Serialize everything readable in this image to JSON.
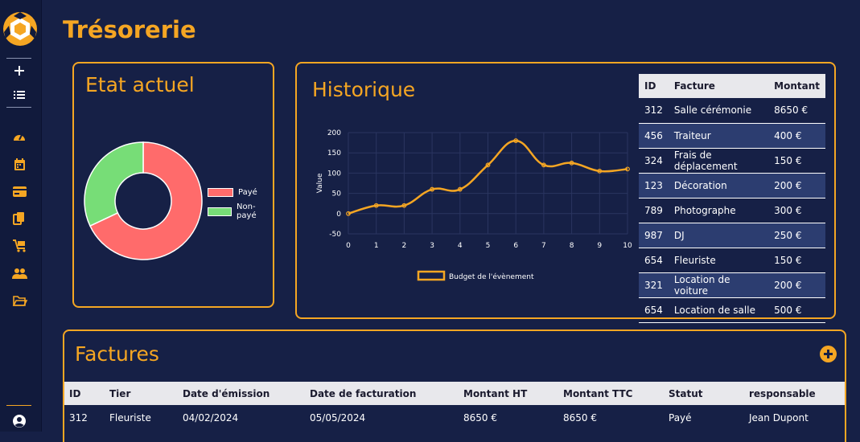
{
  "page": {
    "title": "Trésorerie"
  },
  "sidebar": {
    "top_items": [
      {
        "name": "add-icon"
      },
      {
        "name": "list-icon"
      }
    ],
    "items": [
      {
        "name": "dashboard-icon"
      },
      {
        "name": "calendar-icon"
      },
      {
        "name": "credit-card-icon"
      },
      {
        "name": "documents-icon"
      },
      {
        "name": "cart-icon"
      },
      {
        "name": "users-icon"
      },
      {
        "name": "folder-icon"
      }
    ],
    "bottom_icon": "user-circle-icon"
  },
  "etat": {
    "title": "Etat actuel",
    "legend": [
      {
        "label": "Payé",
        "color": "#ff6b6b"
      },
      {
        "label": "Non-payé",
        "color": "#77dd77"
      }
    ]
  },
  "historique": {
    "title": "Historique",
    "table": {
      "headers": [
        "ID",
        "Facture",
        "Montant"
      ],
      "rows": [
        [
          "312",
          "Salle cérémonie",
          "8650 €"
        ],
        [
          "456",
          "Traiteur",
          "400 €"
        ],
        [
          "324",
          "Frais de déplacement",
          "150 €"
        ],
        [
          "123",
          "Décoration",
          "200 €"
        ],
        [
          "789",
          "Photographe",
          "300 €"
        ],
        [
          "987",
          "DJ",
          "250 €"
        ],
        [
          "654",
          "Fleuriste",
          "150 €"
        ],
        [
          "321",
          "Location de voiture",
          "200 €"
        ],
        [
          "654",
          "Location de salle",
          "500 €"
        ]
      ]
    }
  },
  "factures": {
    "title": "Factures",
    "headers": [
      "ID",
      "Tier",
      "Date d'émission",
      "Date de facturation",
      "Montant HT",
      "Montant TTC",
      "Statut",
      "responsable"
    ],
    "rows": [
      [
        "312",
        "Fleuriste",
        "04/02/2024",
        "05/05/2024",
        "8650 €",
        "8650 €",
        "Payé",
        "Jean Dupont"
      ]
    ]
  },
  "chart_data": [
    {
      "type": "pie",
      "title": "",
      "donut": true,
      "categories": [
        "Payé",
        "Non-payé"
      ],
      "values": [
        68,
        32
      ],
      "colors": [
        "#ff6b6b",
        "#77dd77"
      ],
      "legend_position": "right"
    },
    {
      "type": "line",
      "title": "",
      "xlabel": "",
      "ylabel": "Value",
      "x": [
        0,
        1,
        2,
        3,
        4,
        5,
        6,
        7,
        8,
        9,
        10
      ],
      "series": [
        {
          "name": "Budget de l'évènement",
          "values": [
            0,
            20,
            20,
            60,
            60,
            120,
            180,
            120,
            125,
            105,
            110
          ],
          "color": "#f5a623"
        }
      ],
      "xlim": [
        0,
        10
      ],
      "ylim": [
        -50,
        200
      ],
      "yticks": [
        -50,
        0,
        50,
        100,
        150,
        200
      ],
      "xticks": [
        0,
        1,
        2,
        3,
        4,
        5,
        6,
        7,
        8,
        9,
        10
      ],
      "grid": true,
      "legend_position": "bottom"
    }
  ]
}
